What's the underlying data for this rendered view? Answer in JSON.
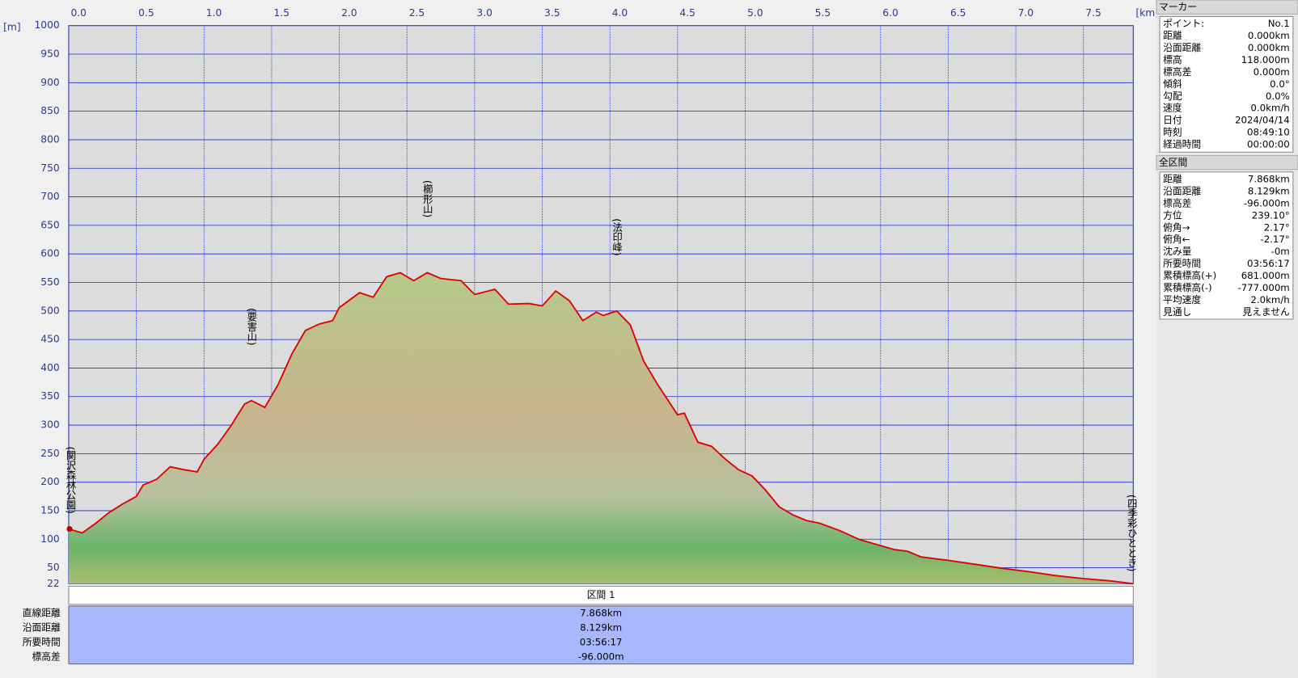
{
  "chart_data": {
    "type": "line",
    "x_unit": "[km]",
    "y_unit": "[m]",
    "xlim": [
      0,
      7.868
    ],
    "ylim": [
      22,
      1000
    ],
    "xticks": [
      {
        "value": 0,
        "label": "0.0"
      },
      0.5,
      {
        "value": 1,
        "label": "1.0"
      },
      1.5,
      {
        "value": 2,
        "label": "2.0"
      },
      2.5,
      {
        "value": 3,
        "label": "3.0"
      },
      3.5,
      {
        "value": 4,
        "label": "4.0"
      },
      4.5,
      {
        "value": 5,
        "label": "5.0"
      },
      5.5,
      {
        "value": 6,
        "label": "6.0"
      },
      6.5,
      {
        "value": 7,
        "label": "7.0"
      },
      7.5
    ],
    "yticks": [
      22,
      50,
      100,
      150,
      200,
      250,
      300,
      350,
      400,
      450,
      500,
      550,
      600,
      650,
      700,
      750,
      800,
      850,
      900,
      950,
      1000
    ],
    "grid": true,
    "series": [
      {
        "color": "#e00000",
        "x": [
          0,
          0.1,
          0.2,
          0.3,
          0.4,
          0.5,
          0.55,
          0.65,
          0.75,
          0.85,
          0.95,
          1.0,
          1.1,
          1.2,
          1.3,
          1.35,
          1.45,
          1.55,
          1.65,
          1.75,
          1.85,
          1.95,
          2.0,
          2.15,
          2.25,
          2.35,
          2.45,
          2.55,
          2.65,
          2.75,
          2.9,
          3.0,
          3.15,
          3.25,
          3.4,
          3.5,
          3.6,
          3.7,
          3.8,
          3.9,
          3.95,
          4.05,
          4.15,
          4.25,
          4.35,
          4.5,
          4.55,
          4.65,
          4.75,
          4.85,
          4.95,
          5.05,
          5.15,
          5.25,
          5.35,
          5.45,
          5.55,
          5.7,
          5.85,
          6.0,
          6.1,
          6.2,
          6.3,
          6.5,
          6.7,
          6.9,
          7.1,
          7.3,
          7.5,
          7.7,
          7.868
        ],
        "values": [
          118,
          111,
          128,
          147,
          162,
          175,
          195,
          205,
          227,
          222,
          218,
          240,
          266,
          299,
          337,
          343,
          331,
          372,
          425,
          466,
          477,
          483,
          506,
          532,
          524,
          560,
          567,
          553,
          567,
          557,
          553,
          529,
          538,
          512,
          513,
          509,
          535,
          518,
          483,
          498,
          492,
          500,
          476,
          412,
          372,
          318,
          321,
          270,
          263,
          241,
          222,
          211,
          186,
          157,
          143,
          133,
          128,
          115,
          99,
          89,
          82,
          79,
          69,
          63,
          56,
          49,
          43,
          36,
          31,
          27,
          22
        ]
      }
    ],
    "annotations": [
      {
        "label": "(関沢森林公園)",
        "x": 0
      },
      {
        "label": "(要害山)",
        "x": 1.35
      },
      {
        "label": "(櫛形山)",
        "x": 2.65
      },
      {
        "label": "(法印峰)",
        "x": 4.05
      },
      {
        "label": "(四季彩ひととき)",
        "x": 7.868
      }
    ]
  },
  "marker_panel": {
    "title": "マーカー",
    "rows": [
      [
        "ポイント:",
        "No.1"
      ],
      [
        "距離",
        "0.000km"
      ],
      [
        "沿面距離",
        "0.000km"
      ],
      [
        "標高",
        "118.000m"
      ],
      [
        "標高差",
        "0.000m"
      ],
      [
        "傾斜",
        "0.0°"
      ],
      [
        "勾配",
        "0.0%"
      ],
      [
        "速度",
        "0.0km/h"
      ],
      [
        "日付",
        "2024/04/14"
      ],
      [
        "時刻",
        "08:49:10"
      ],
      [
        "経過時間",
        "00:00:00"
      ]
    ]
  },
  "section_panel": {
    "title": "全区間",
    "rows": [
      [
        "距離",
        "7.868km"
      ],
      [
        "沿面距離",
        "8.129km"
      ],
      [
        "標高差",
        "-96.000m"
      ],
      [
        "方位",
        "239.10°"
      ],
      [
        "俯角→",
        "2.17°"
      ],
      [
        "俯角←",
        "-2.17°"
      ],
      [
        "沈み量",
        "-0m"
      ],
      [
        "所要時間",
        "03:56:17"
      ],
      [
        "累積標高(+)",
        "681.000m"
      ],
      [
        "累積標高(-)",
        "-777.000m"
      ],
      [
        "平均速度",
        "2.0km/h"
      ],
      [
        "見通し",
        "見えません"
      ]
    ]
  },
  "summary_table": {
    "header": "区間 1",
    "rows": [
      [
        "直線距離",
        "7.868km"
      ],
      [
        "沿面距離",
        "8.129km"
      ],
      [
        "所要時間",
        "03:56:17"
      ],
      [
        "標高差",
        "-96.000m"
      ]
    ]
  }
}
